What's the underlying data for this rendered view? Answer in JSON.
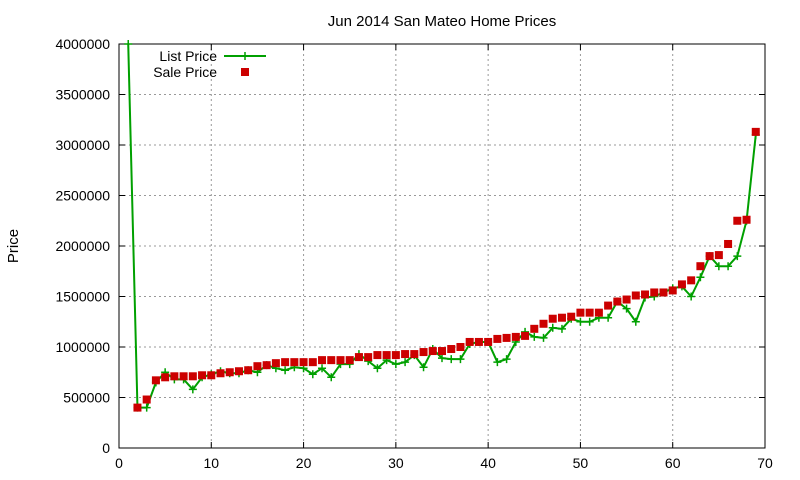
{
  "chart_data": {
    "type": "scatter",
    "title": "Jun 2014 San Mateo Home Prices",
    "xlabel": "",
    "ylabel": "Price",
    "xlim": [
      0,
      70
    ],
    "ylim": [
      0,
      4000000
    ],
    "xticks": [
      "0",
      "10",
      "20",
      "30",
      "40",
      "50",
      "60",
      "70"
    ],
    "yticks": [
      "0",
      "500000",
      "1000000",
      "1500000",
      "2000000",
      "2500000",
      "3000000",
      "3500000",
      "4000000"
    ],
    "grid": true,
    "legend_position": "top-left",
    "series": [
      {
        "name": "List Price",
        "style": "line-with-plus-markers",
        "color": "#00a000",
        "x": [
          1,
          2,
          3,
          4,
          5,
          6,
          7,
          8,
          9,
          10,
          11,
          12,
          13,
          14,
          15,
          16,
          17,
          18,
          19,
          20,
          21,
          22,
          23,
          24,
          25,
          26,
          27,
          28,
          29,
          30,
          31,
          32,
          33,
          34,
          35,
          36,
          37,
          38,
          39,
          40,
          41,
          42,
          43,
          44,
          45,
          46,
          47,
          48,
          49,
          50,
          51,
          52,
          53,
          54,
          55,
          56,
          57,
          58,
          59,
          60,
          61,
          62,
          63,
          64,
          65,
          66,
          67,
          68,
          69
        ],
        "y": [
          4000000,
          400000,
          400000,
          650000,
          750000,
          680000,
          680000,
          580000,
          700000,
          730000,
          760000,
          740000,
          740000,
          770000,
          750000,
          820000,
          790000,
          770000,
          800000,
          790000,
          730000,
          790000,
          700000,
          830000,
          830000,
          930000,
          860000,
          790000,
          870000,
          830000,
          850000,
          920000,
          800000,
          980000,
          890000,
          880000,
          880000,
          1030000,
          1050000,
          1050000,
          850000,
          880000,
          1050000,
          1150000,
          1100000,
          1090000,
          1190000,
          1180000,
          1280000,
          1250000,
          1250000,
          1290000,
          1290000,
          1450000,
          1380000,
          1250000,
          1490000,
          1500000,
          1540000,
          1580000,
          1600000,
          1500000,
          1690000,
          1900000,
          1800000,
          1800000,
          1900000,
          2250000,
          3100000
        ]
      },
      {
        "name": "Sale Price",
        "style": "square-markers",
        "color": "#cc0000",
        "x": [
          2,
          3,
          4,
          5,
          6,
          7,
          8,
          9,
          10,
          11,
          12,
          13,
          14,
          15,
          16,
          17,
          18,
          19,
          20,
          21,
          22,
          23,
          24,
          25,
          26,
          27,
          28,
          29,
          30,
          31,
          32,
          33,
          34,
          35,
          36,
          37,
          38,
          39,
          40,
          41,
          42,
          43,
          44,
          45,
          46,
          47,
          48,
          49,
          50,
          51,
          52,
          53,
          54,
          55,
          56,
          57,
          58,
          59,
          60,
          61,
          62,
          63,
          64,
          65,
          66,
          67,
          68,
          69
        ],
        "y": [
          400000,
          480000,
          670000,
          700000,
          710000,
          710000,
          710000,
          720000,
          720000,
          740000,
          750000,
          760000,
          770000,
          810000,
          820000,
          840000,
          850000,
          850000,
          850000,
          850000,
          870000,
          870000,
          870000,
          870000,
          900000,
          900000,
          920000,
          920000,
          920000,
          930000,
          930000,
          950000,
          960000,
          960000,
          980000,
          1000000,
          1050000,
          1050000,
          1050000,
          1080000,
          1090000,
          1100000,
          1110000,
          1180000,
          1230000,
          1280000,
          1290000,
          1300000,
          1340000,
          1340000,
          1340000,
          1410000,
          1450000,
          1470000,
          1510000,
          1520000,
          1540000,
          1540000,
          1560000,
          1620000,
          1660000,
          1800000,
          1900000,
          1910000,
          2020000,
          2250000,
          2260000,
          3130000
        ]
      }
    ]
  }
}
